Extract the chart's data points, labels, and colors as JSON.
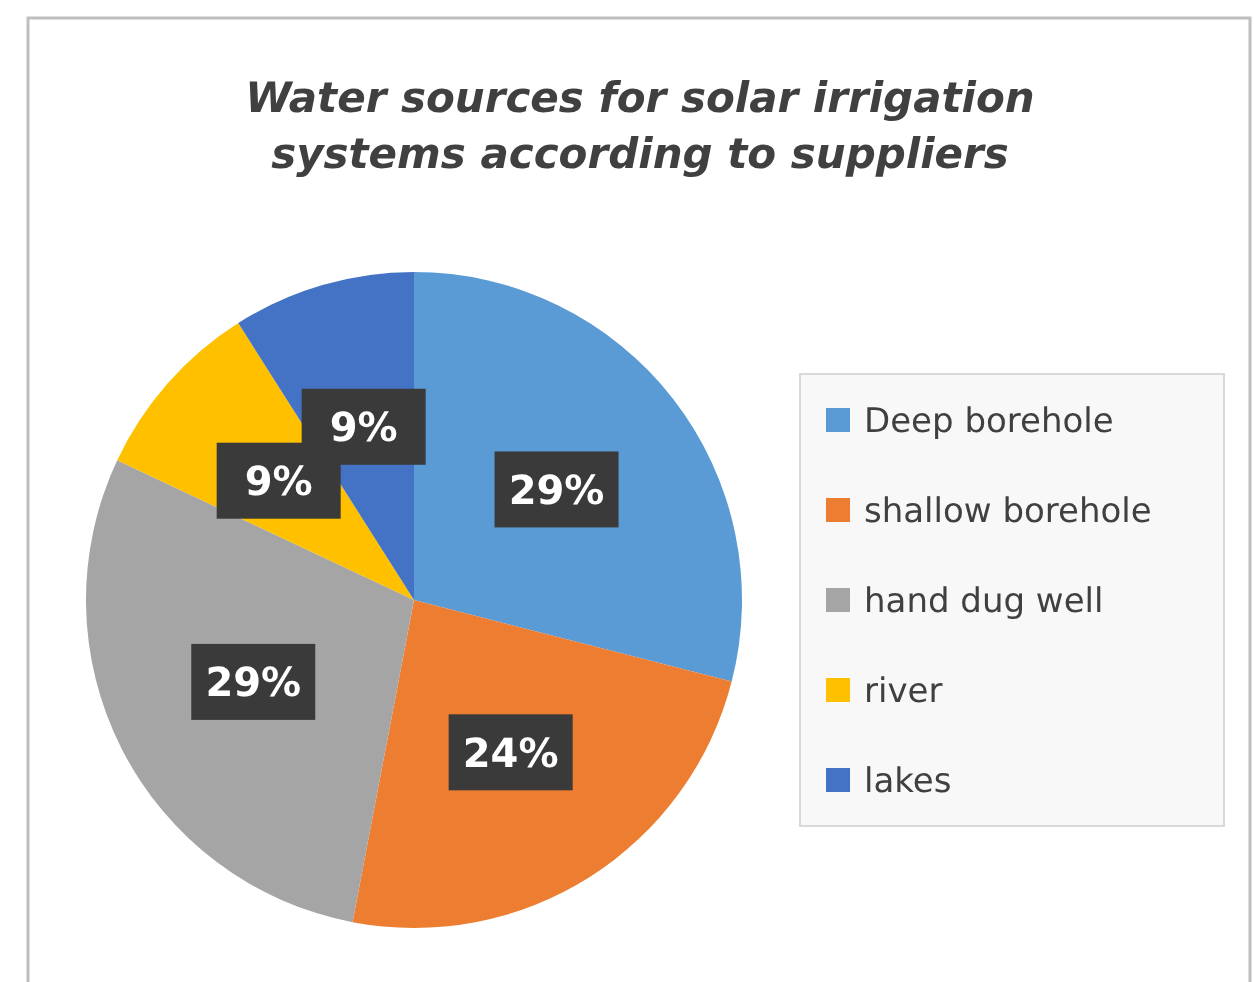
{
  "chart_data": {
    "type": "pie",
    "title": "Water sources for solar irrigation systems according to suppliers",
    "categories": [
      "Deep borehole",
      "shallow borehole",
      "hand dug well",
      "river",
      "lakes"
    ],
    "values": [
      29,
      24,
      29,
      9,
      9
    ],
    "colors": [
      "#5b9bd5",
      "#ed7d31",
      "#a5a5a5",
      "#ffc000",
      "#4472c4"
    ],
    "value_labels": [
      "29%",
      "24%",
      "29%",
      "9%",
      "9%"
    ],
    "legend": "right"
  }
}
